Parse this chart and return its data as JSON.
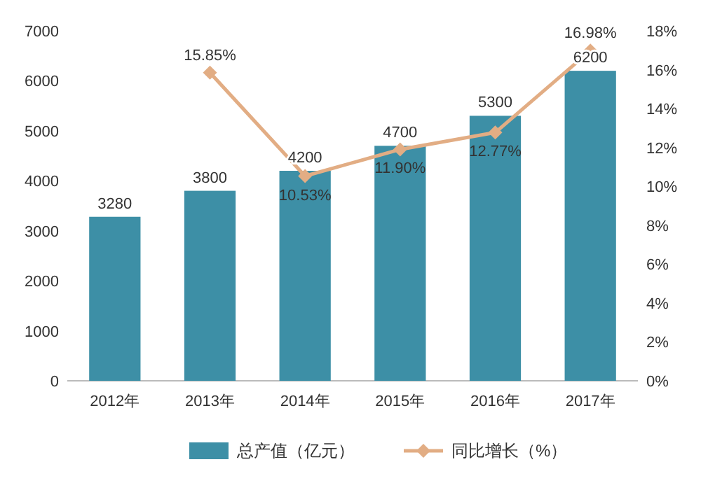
{
  "chart_data": {
    "type": "bar",
    "categories": [
      "2012年",
      "2013年",
      "2014年",
      "2015年",
      "2016年",
      "2017年"
    ],
    "series": [
      {
        "name": "总产值（亿元）",
        "color": "#3d8fa6",
        "values": [
          3280,
          3800,
          4200,
          4700,
          5300,
          6200
        ],
        "value_labels": [
          "3280",
          "3800",
          "4200",
          "4700",
          "5300",
          "6200"
        ]
      },
      {
        "name": "同比增长（%）",
        "type": "line",
        "axis": "y2",
        "color": "#e2ad84",
        "marker": "diamond",
        "line_style": "solid",
        "values": [
          null,
          15.85,
          10.53,
          11.9,
          12.77,
          16.98
        ],
        "value_labels": [
          null,
          "15.85%",
          "10.53%",
          "11.90%",
          "12.77%",
          "16.98%"
        ]
      }
    ],
    "ylim": [
      0,
      7000
    ],
    "yticks": [
      0,
      1000,
      2000,
      3000,
      4000,
      5000,
      6000,
      7000
    ],
    "y2lim": [
      0,
      18
    ],
    "y2ticks": [
      {
        "value": 0,
        "label": "0%"
      },
      {
        "value": 2,
        "label": "2%"
      },
      {
        "value": 4,
        "label": "4%"
      },
      {
        "value": 6,
        "label": "6%"
      },
      {
        "value": 8,
        "label": "8%"
      },
      {
        "value": 10,
        "label": "10%"
      },
      {
        "value": 12,
        "label": "12%"
      },
      {
        "value": 14,
        "label": "14%"
      },
      {
        "value": 16,
        "label": "16%"
      },
      {
        "value": 18,
        "label": "18%"
      }
    ],
    "grid": false,
    "legend": "bottom"
  }
}
